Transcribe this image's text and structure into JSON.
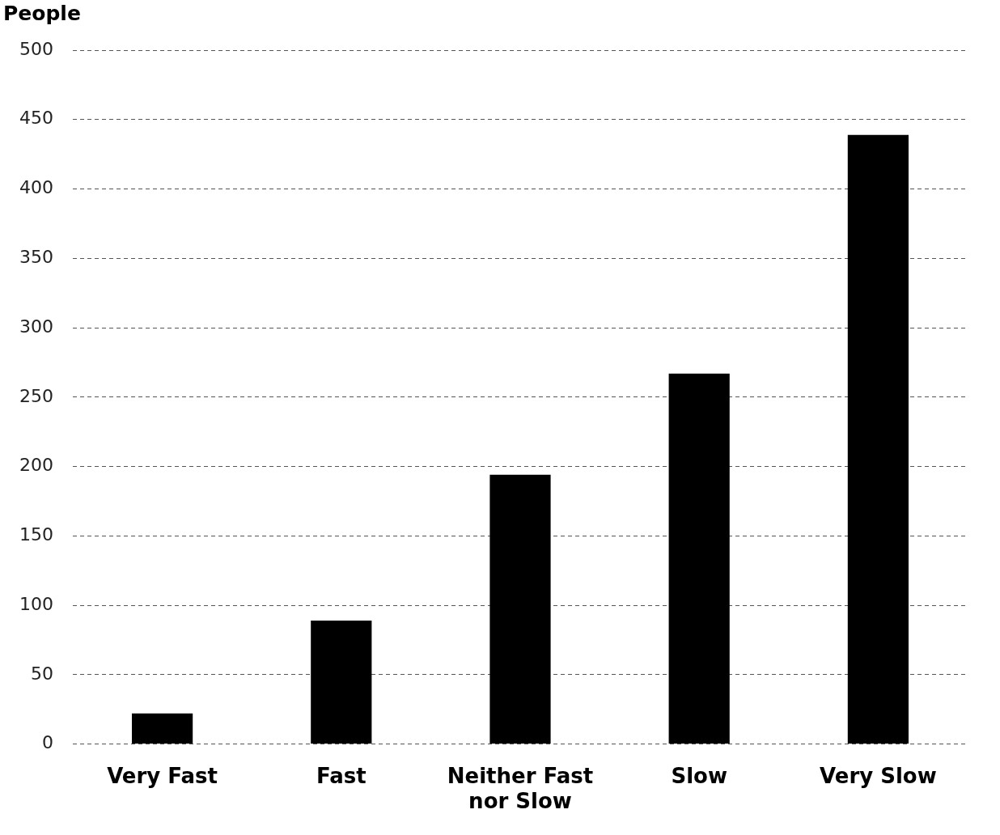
{
  "chart_data": {
    "type": "bar",
    "ylabel": "People",
    "categories": [
      "Very Fast",
      "Fast",
      "Neither Fast nor Slow",
      "Slow",
      "Very Slow"
    ],
    "values": [
      22,
      89,
      194,
      267,
      439
    ],
    "color": "#000000",
    "ylim": [
      0,
      500
    ],
    "yticks": [
      0,
      50,
      100,
      150,
      200,
      250,
      300,
      350,
      400,
      450,
      500
    ],
    "grid": "y",
    "legend": false
  }
}
